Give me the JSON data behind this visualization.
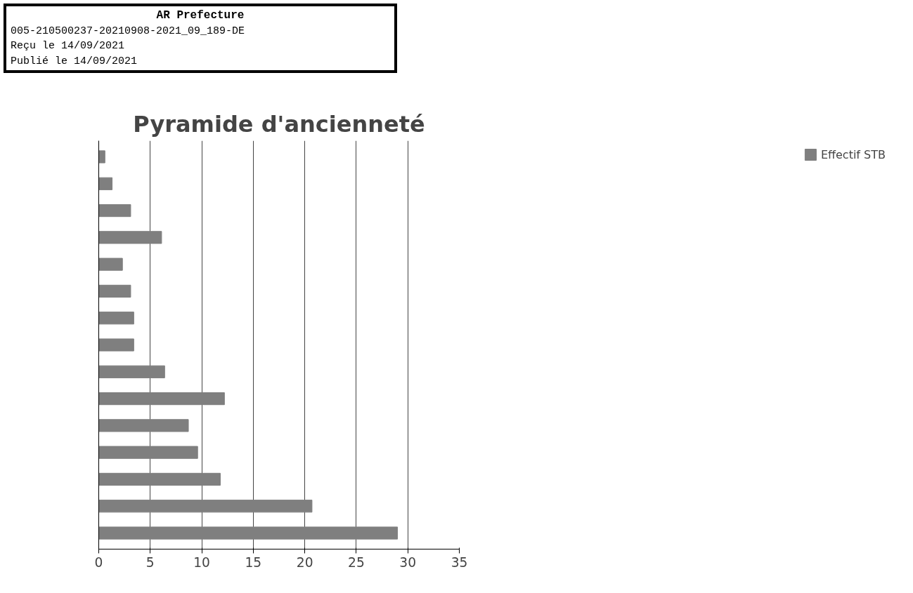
{
  "chart_data": {
    "type": "bar",
    "orientation": "horizontal",
    "title": "Pyramide d'ancienneté",
    "annotations": [
      "AR Prefecture",
      "005-210500237-20210908-2021_09_189-DE",
      "Reçu le 14/09/2021",
      "Publié le 14/09/2021"
    ],
    "categories": [
      null,
      null,
      null,
      null,
      null,
      null,
      null,
      null,
      null,
      null,
      null,
      null,
      null,
      null,
      null
    ],
    "series": [
      {
        "name": "Effectif STB",
        "color": "#7f7f7f",
        "values": [
          0.6,
          1.3,
          3.1,
          6.1,
          2.3,
          3.1,
          3.4,
          3.4,
          6.4,
          12.2,
          8.7,
          9.6,
          11.8,
          20.7,
          29.0
        ]
      }
    ],
    "xlim": [
      0,
      35
    ],
    "xticks": [
      0,
      5,
      10,
      15,
      20,
      25,
      30,
      35
    ],
    "grid": "x",
    "legend": "right",
    "tick_labels": "x"
  }
}
